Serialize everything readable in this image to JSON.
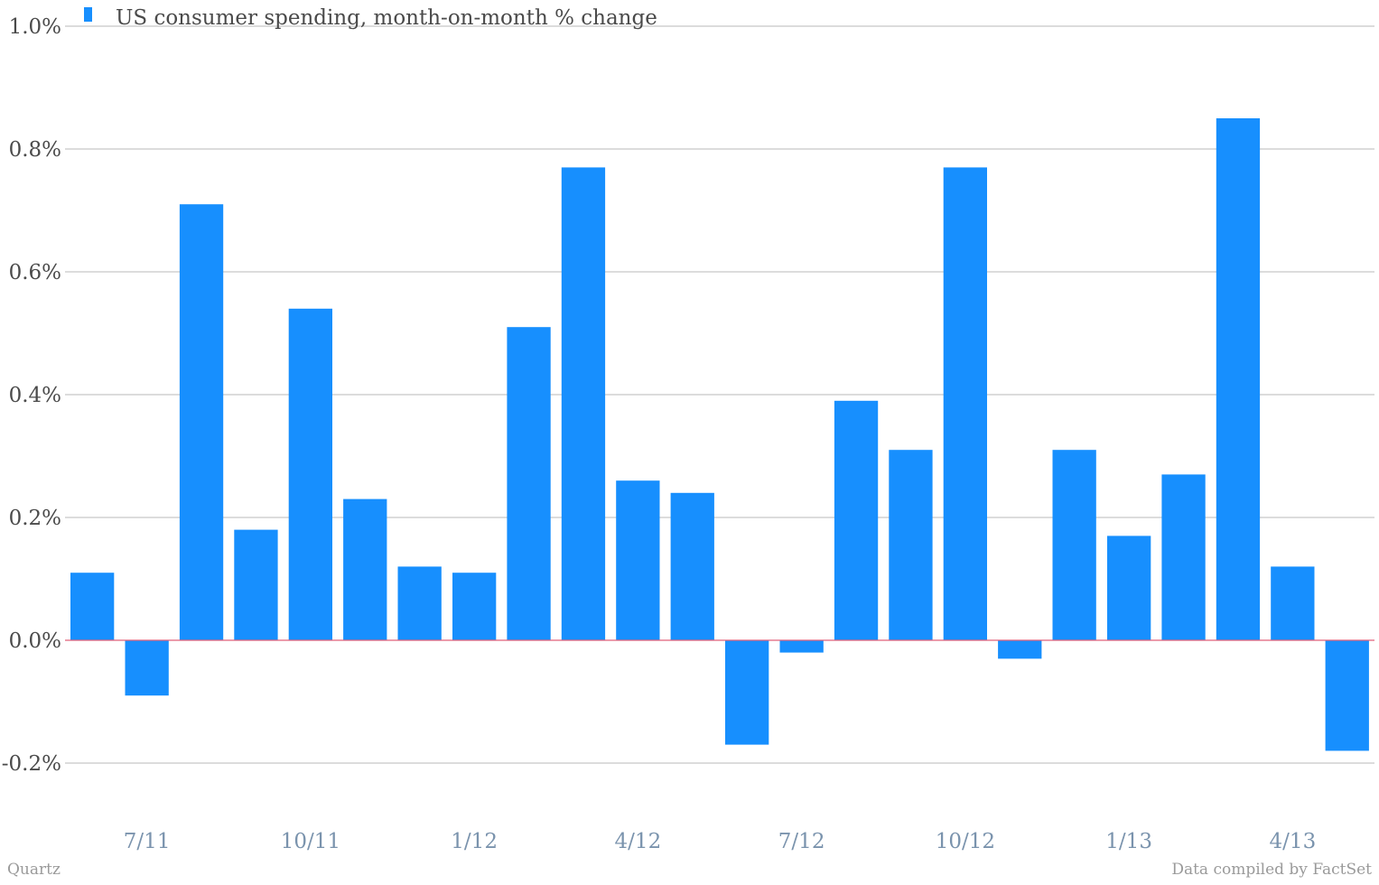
{
  "chart_data": {
    "type": "bar",
    "categories": [
      "6/11",
      "7/11",
      "8/11",
      "9/11",
      "10/11",
      "11/11",
      "12/11",
      "1/12",
      "2/12",
      "3/12",
      "4/12",
      "5/12",
      "6/12",
      "7/12",
      "8/12",
      "9/12",
      "10/12",
      "11/12",
      "12/12",
      "1/13",
      "2/13",
      "3/13",
      "4/13",
      "5/13"
    ],
    "x_tick_labels": [
      "7/11",
      "10/11",
      "1/12",
      "4/12",
      "7/12",
      "10/12",
      "1/13",
      "4/13"
    ],
    "series": [
      {
        "name": "US consumer spending, month-on-month % change",
        "color": "#178ffe",
        "values": [
          0.11,
          -0.09,
          0.71,
          0.18,
          0.54,
          0.23,
          0.12,
          0.11,
          0.51,
          0.77,
          0.26,
          0.24,
          -0.17,
          -0.02,
          0.39,
          0.31,
          0.77,
          -0.03,
          0.31,
          0.17,
          0.27,
          0.85,
          0.12,
          -0.18
        ]
      }
    ],
    "y_ticks": [
      "1.0%",
      "0.8%",
      "0.6%",
      "0.4%",
      "0.2%",
      "0.0%",
      "-0.2%"
    ],
    "ylim": [
      -0.2,
      1.0
    ],
    "grid": true,
    "legend": "top-left",
    "zero_line_color": "#e0607a"
  },
  "footer": {
    "left": "Quartz",
    "right": "Data compiled by FactSet"
  }
}
